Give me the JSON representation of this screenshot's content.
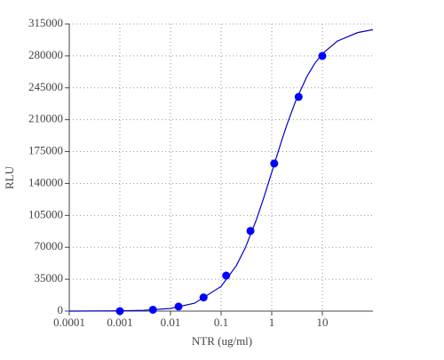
{
  "chart_data": {
    "type": "scatter",
    "xlabel": "NTR (ug/ml)",
    "ylabel": "RLU",
    "xscale": "log",
    "xlim": [
      0.0001,
      100
    ],
    "xticks": [
      0.0001,
      0.001,
      0.01,
      0.1,
      1,
      10
    ],
    "ylim": [
      0,
      315000
    ],
    "yticks": [
      0,
      35000,
      70000,
      105000,
      140000,
      175000,
      210000,
      245000,
      280000,
      315000
    ],
    "grid": true,
    "series": [
      {
        "style": "line",
        "color": "#0000cc",
        "x": [
          0.0001,
          0.001,
          0.003,
          0.01,
          0.03,
          0.1,
          0.2,
          0.3,
          0.5,
          0.7,
          1,
          1.5,
          2,
          3,
          5,
          7,
          10,
          20,
          50,
          100
        ],
        "values": [
          30,
          300,
          890,
          2940,
          8670,
          27100,
          49900,
          69300,
          100600,
          124800,
          152200,
          183500,
          204600,
          231100,
          257800,
          271300,
          282400,
          296400,
          305600,
          308800
        ]
      },
      {
        "style": "markers",
        "color": "#0000ff",
        "x": [
          0.001,
          0.0045,
          0.0144,
          0.045,
          0.126,
          0.38,
          1.12,
          3.4,
          10
        ],
        "values": [
          0,
          1500,
          5000,
          15000,
          39000,
          88000,
          162000,
          235000,
          280000
        ]
      }
    ]
  }
}
